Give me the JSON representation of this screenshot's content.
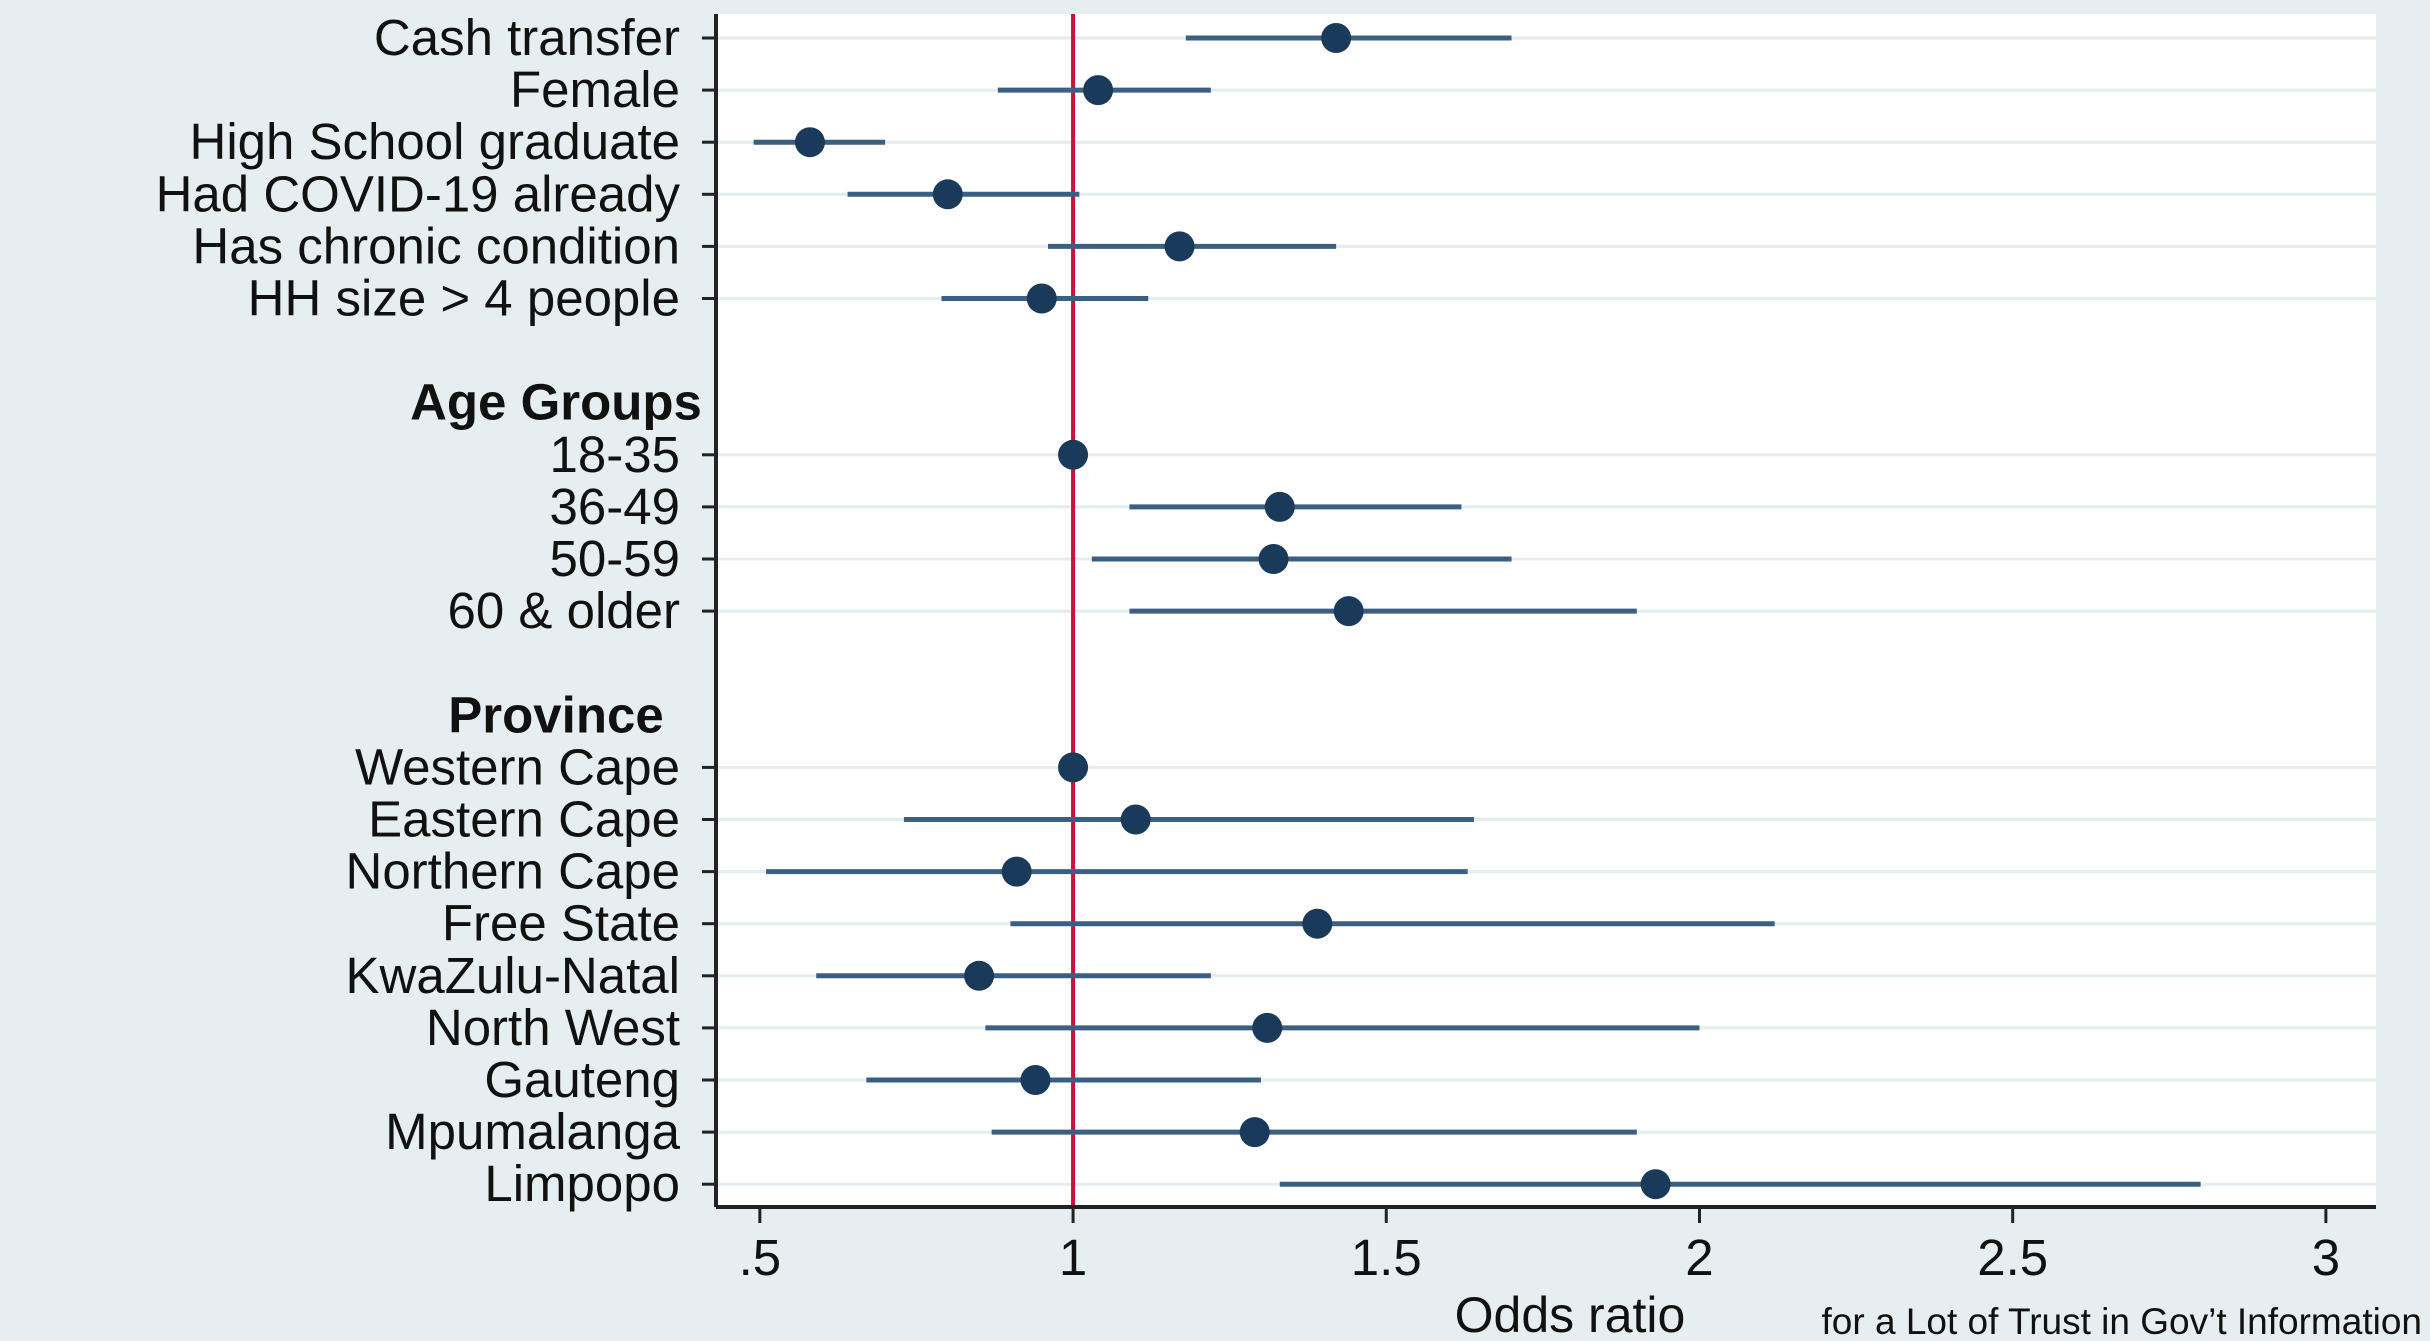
{
  "chart_data": {
    "type": "scatter",
    "subtype": "forest-plot",
    "xlabel": "Odds ratio",
    "note": "for a Lot of Trust in Gov’t Information",
    "xlim": [
      0.43,
      3.08
    ],
    "xticks": [
      ".5",
      "1",
      "1.5",
      "2",
      "2.5",
      "3"
    ],
    "xtick_values": [
      0.5,
      1,
      1.5,
      2,
      2.5,
      3
    ],
    "reference_line": 1,
    "grid": true,
    "colors": {
      "reference_line": "#c8143c",
      "point": "#1a3a5c",
      "ci_line": "#3a5f82",
      "plot_background": "#ffffff",
      "gridline": "#e4ecf0",
      "page_background": "#e6eef1"
    },
    "rows": [
      {
        "label": "Cash transfer",
        "header": false,
        "or": 1.42,
        "lo": 1.18,
        "hi": 1.7
      },
      {
        "label": "Female",
        "header": false,
        "or": 1.04,
        "lo": 0.88,
        "hi": 1.22
      },
      {
        "label": "High School graduate",
        "header": false,
        "or": 0.58,
        "lo": 0.49,
        "hi": 0.7
      },
      {
        "label": "Had COVID-19 already",
        "header": false,
        "or": 0.8,
        "lo": 0.64,
        "hi": 1.01
      },
      {
        "label": "Has chronic condition",
        "header": false,
        "or": 1.17,
        "lo": 0.96,
        "hi": 1.42
      },
      {
        "label": "HH size > 4 people",
        "header": false,
        "or": 0.95,
        "lo": 0.79,
        "hi": 1.12
      },
      {
        "label": "",
        "header": false
      },
      {
        "label": "Age Groups",
        "header": true
      },
      {
        "label": "18-35",
        "header": false,
        "or": 1.0
      },
      {
        "label": "36-49",
        "header": false,
        "or": 1.33,
        "lo": 1.09,
        "hi": 1.62
      },
      {
        "label": "50-59",
        "header": false,
        "or": 1.32,
        "lo": 1.03,
        "hi": 1.7
      },
      {
        "label": "60 & older",
        "header": false,
        "or": 1.44,
        "lo": 1.09,
        "hi": 1.9
      },
      {
        "label": "",
        "header": false
      },
      {
        "label": "Province",
        "header": true
      },
      {
        "label": "Western Cape",
        "header": false,
        "or": 1.0
      },
      {
        "label": "Eastern Cape",
        "header": false,
        "or": 1.1,
        "lo": 0.73,
        "hi": 1.64
      },
      {
        "label": "Northern Cape",
        "header": false,
        "or": 0.91,
        "lo": 0.51,
        "hi": 1.63
      },
      {
        "label": "Free State",
        "header": false,
        "or": 1.39,
        "lo": 0.9,
        "hi": 2.12
      },
      {
        "label": "KwaZulu-Natal",
        "header": false,
        "or": 0.85,
        "lo": 0.59,
        "hi": 1.22
      },
      {
        "label": "North West",
        "header": false,
        "or": 1.31,
        "lo": 0.86,
        "hi": 2.0
      },
      {
        "label": "Gauteng",
        "header": false,
        "or": 0.94,
        "lo": 0.67,
        "hi": 1.3
      },
      {
        "label": "Mpumalanga",
        "header": false,
        "or": 1.29,
        "lo": 0.87,
        "hi": 1.9
      },
      {
        "label": "Limpopo",
        "header": false,
        "or": 1.93,
        "lo": 1.33,
        "hi": 2.8
      }
    ]
  }
}
